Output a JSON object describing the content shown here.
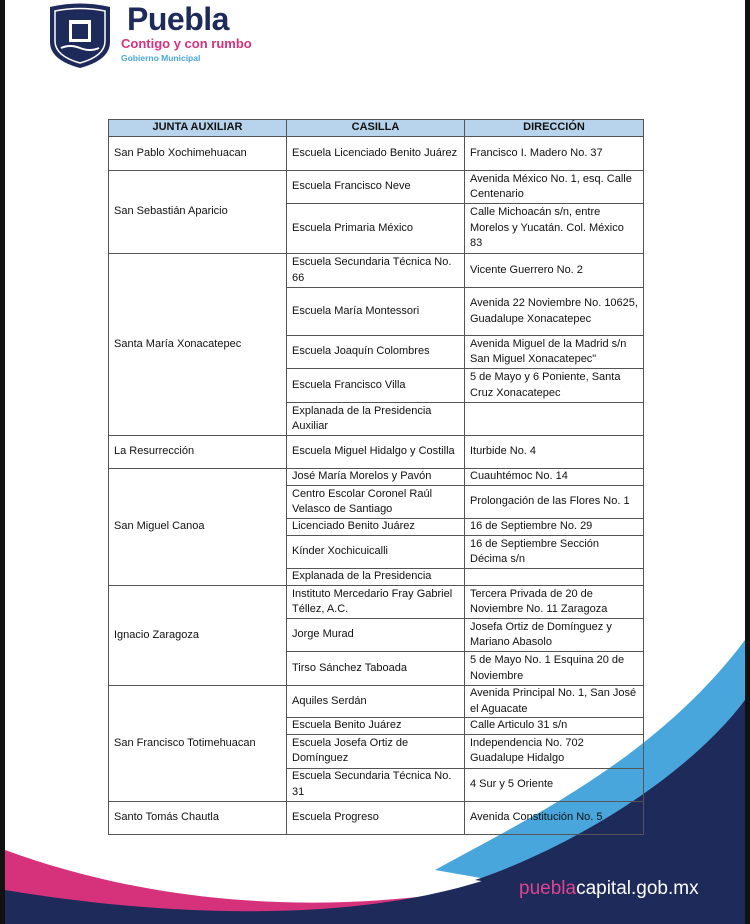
{
  "header": {
    "brand_name": "Puebla",
    "tagline": "Contigo y con rumbo",
    "subtitle": "Gobierno Municipal"
  },
  "table": {
    "columns": [
      "JUNTA AUXILIAR",
      "CASILLA",
      "DIRECCIÓN"
    ],
    "groups": [
      {
        "junta": "San Pablo Xochimehuacan",
        "rows": [
          {
            "casilla": "Escuela Licenciado Benito Juárez",
            "direccion": "Francisco I. Madero No. 37"
          }
        ]
      },
      {
        "junta": "San Sebastián Aparicio",
        "rows": [
          {
            "casilla": "Escuela Francisco Neve",
            "direccion": "Avenida México No. 1, esq. Calle Centenario"
          },
          {
            "casilla": "Escuela Primaria México",
            "direccion": "Calle Michoacán s/n, entre Morelos y Yucatán. Col. México 83"
          }
        ]
      },
      {
        "junta": "Santa María Xonacatepec",
        "rows": [
          {
            "casilla": "Escuela Secundaria Técnica No. 66",
            "direccion": "Vicente Guerrero No. 2"
          },
          {
            "casilla": "Escuela María Montessori",
            "direccion": "Avenida 22 Noviembre No. 10625, Guadalupe Xonacatepec"
          },
          {
            "casilla": "Escuela Joaquín Colombres",
            "direccion": "Avenida Miguel de la Madrid s/n San Miguel Xonacatepec\""
          },
          {
            "casilla": "Escuela Francisco Villa",
            "direccion": "5 de Mayo y 6 Poniente, Santa Cruz Xonacatepec"
          },
          {
            "casilla": "Explanada de la Presidencia Auxiliar",
            "direccion": ""
          }
        ]
      },
      {
        "junta": "La Resurrección",
        "rows": [
          {
            "casilla": "Escuela Miguel Hidalgo y Costilla",
            "direccion": "Iturbide No. 4"
          }
        ]
      },
      {
        "junta": "San Miguel Canoa",
        "rows": [
          {
            "casilla": "José María Morelos y Pavón",
            "direccion": "Cuauhtémoc No. 14"
          },
          {
            "casilla": "Centro Escolar Coronel Raúl Velasco de Santiago",
            "direccion": "Prolongación de las Flores No. 1"
          },
          {
            "casilla": "Licenciado Benito Juárez",
            "direccion": "16 de Septiembre No. 29"
          },
          {
            "casilla": "Kínder Xochicuicalli",
            "direccion": "16 de Septiembre Sección Décima s/n"
          },
          {
            "casilla": "Explanada de la Presidencia",
            "direccion": ""
          }
        ]
      },
      {
        "junta": "Ignacio Zaragoza",
        "rows": [
          {
            "casilla": "Instituto Mercedario Fray Gabriel Téllez, A.C.",
            "direccion": "Tercera Privada de 20 de Noviembre No. 11 Zaragoza"
          },
          {
            "casilla": "Jorge Murad",
            "direccion": "Josefa Ortiz de Domínguez y Mariano Abasolo"
          },
          {
            "casilla": "Tirso Sánchez Taboada",
            "direccion": "5 de Mayo No. 1 Esquina 20 de Noviembre"
          }
        ]
      },
      {
        "junta": "San Francisco Totimehuacan",
        "rows": [
          {
            "casilla": "Aquiles Serdán",
            "direccion": "Avenida Principal No. 1, San José el Aguacate"
          },
          {
            "casilla": "Escuela Benito Juárez",
            "direccion": "Calle Articulo 31 s/n"
          },
          {
            "casilla": "Escuela Josefa Ortiz de Domínguez",
            "direccion": "Independencia No. 702 Guadalupe Hidalgo"
          },
          {
            "casilla": "Escuela Secundaria Técnica No. 31",
            "direccion": "4 Sur y 5 Oriente"
          }
        ]
      },
      {
        "junta": "Santo Tomás Chautla",
        "rows": [
          {
            "casilla": "Escuela Progreso",
            "direccion": "Avenida Constitución No. 5"
          }
        ]
      }
    ]
  },
  "footer": {
    "url_part1": "puebla",
    "url_part2": "capital.gob.mx"
  },
  "colors": {
    "navy": "#1d2a5a",
    "pink": "#d6327c",
    "light_blue": "#49a6dc",
    "header_fill": "#b8d3ec"
  }
}
